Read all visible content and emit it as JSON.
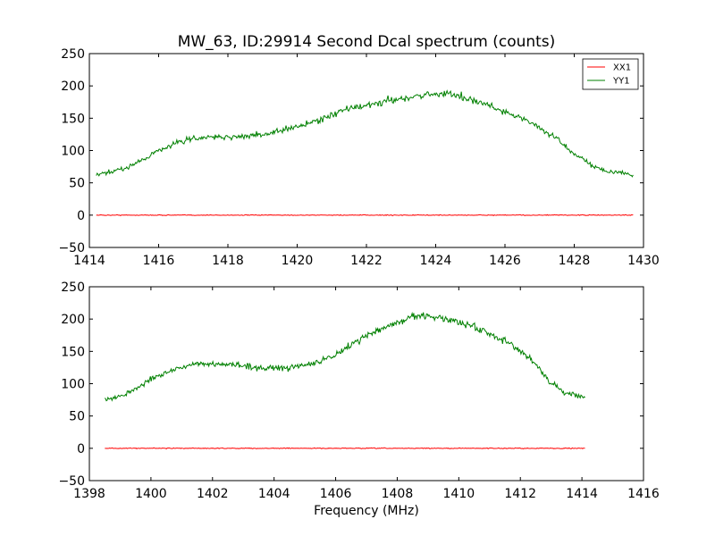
{
  "chart_data": [
    {
      "type": "line",
      "title": "MW_63, ID:29914 Second Dcal spectrum (counts)",
      "xlabel": "",
      "ylabel": "",
      "xlim": [
        1414,
        1430
      ],
      "ylim": [
        -50,
        250
      ],
      "xticks": [
        1414,
        1416,
        1418,
        1420,
        1422,
        1424,
        1426,
        1428,
        1430
      ],
      "yticks": [
        -50,
        0,
        50,
        100,
        150,
        200,
        250
      ],
      "grid": false,
      "legend_position": "top-right",
      "series": [
        {
          "name": "XX1",
          "color": "#ff0000",
          "x": [
            1414.2,
            1429.7
          ],
          "y": [
            0,
            0
          ]
        },
        {
          "name": "YY1",
          "color": "#008000",
          "x": [
            1414.2,
            1414.5,
            1415.0,
            1415.5,
            1416.0,
            1416.5,
            1417.0,
            1417.5,
            1418.0,
            1418.5,
            1419.0,
            1419.5,
            1420.0,
            1420.5,
            1421.0,
            1421.5,
            1422.0,
            1422.5,
            1423.0,
            1423.5,
            1424.0,
            1424.5,
            1425.0,
            1425.5,
            1426.0,
            1426.5,
            1427.0,
            1427.5,
            1428.0,
            1428.5,
            1429.0,
            1429.7
          ],
          "y": [
            62,
            65,
            72,
            85,
            100,
            112,
            118,
            121,
            121,
            122,
            125,
            130,
            137,
            145,
            155,
            165,
            170,
            175,
            180,
            185,
            188,
            187,
            180,
            170,
            160,
            150,
            135,
            118,
            95,
            77,
            68,
            62
          ]
        }
      ]
    },
    {
      "type": "line",
      "title": "",
      "xlabel": "Frequency (MHz)",
      "ylabel": "",
      "xlim": [
        1398,
        1416
      ],
      "ylim": [
        -50,
        250
      ],
      "xticks": [
        1398,
        1400,
        1402,
        1404,
        1406,
        1408,
        1410,
        1412,
        1414,
        1416
      ],
      "yticks": [
        -50,
        0,
        50,
        100,
        150,
        200,
        250
      ],
      "grid": false,
      "legend_position": "none",
      "series": [
        {
          "name": "XX1",
          "color": "#ff0000",
          "x": [
            1398.5,
            1414.1
          ],
          "y": [
            0,
            0
          ]
        },
        {
          "name": "YY1",
          "color": "#008000",
          "x": [
            1398.5,
            1399.0,
            1399.5,
            1400.0,
            1400.5,
            1401.0,
            1401.5,
            1402.0,
            1402.5,
            1403.0,
            1403.5,
            1404.0,
            1404.5,
            1405.0,
            1405.5,
            1406.0,
            1406.5,
            1407.0,
            1407.5,
            1408.0,
            1408.5,
            1409.0,
            1409.5,
            1410.0,
            1410.5,
            1411.0,
            1411.5,
            1412.0,
            1412.5,
            1413.0,
            1413.5,
            1414.1
          ],
          "y": [
            75,
            80,
            92,
            108,
            118,
            125,
            130,
            130,
            130,
            128,
            125,
            123,
            125,
            128,
            135,
            145,
            160,
            175,
            185,
            195,
            205,
            205,
            200,
            195,
            188,
            178,
            165,
            150,
            130,
            100,
            85,
            78
          ]
        }
      ]
    }
  ]
}
